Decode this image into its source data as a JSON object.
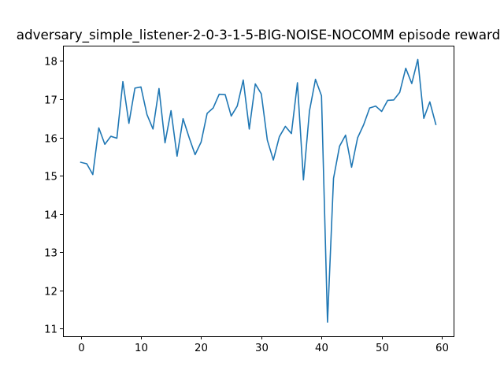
{
  "chart_data": {
    "type": "line",
    "title": "adversary_simple_listener-2-0-3-1-5-BIG-NOISE-NOCOMM episode reward",
    "xlabel": "",
    "ylabel": "",
    "xlim": [
      -2.95,
      61.95
    ],
    "ylim": [
      10.8,
      18.4
    ],
    "xticks": [
      0,
      10,
      20,
      30,
      40,
      50,
      60
    ],
    "yticks": [
      11,
      12,
      13,
      14,
      15,
      16,
      17,
      18
    ],
    "grid": false,
    "line_color": "#1f77b4",
    "series": [
      {
        "x": [
          0,
          1,
          2,
          3,
          4,
          5,
          6,
          7,
          8,
          9,
          10,
          11,
          12,
          13,
          14,
          15,
          16,
          17,
          18,
          19,
          20,
          21,
          22,
          23,
          24,
          25,
          26,
          27,
          28,
          29,
          30,
          31,
          32,
          33,
          34,
          35,
          36,
          37,
          38,
          39,
          40,
          41,
          42,
          43,
          44,
          45,
          46,
          47,
          48,
          49,
          50,
          51,
          52,
          53,
          54,
          55,
          56,
          57,
          58,
          59
        ],
        "values": [
          15.35,
          15.31,
          15.03,
          16.25,
          15.82,
          16.03,
          15.98,
          17.46,
          16.37,
          17.29,
          17.32,
          16.6,
          16.22,
          17.28,
          15.86,
          16.7,
          15.51,
          16.49,
          16.0,
          15.55,
          15.88,
          16.63,
          16.77,
          17.13,
          17.12,
          16.56,
          16.82,
          17.5,
          16.22,
          17.4,
          17.14,
          15.93,
          15.41,
          16.02,
          16.29,
          16.1,
          17.43,
          14.89,
          16.69,
          17.52,
          17.09,
          11.17,
          14.93,
          15.77,
          16.06,
          15.22,
          15.99,
          16.33,
          16.77,
          16.82,
          16.68,
          16.97,
          16.98,
          17.18,
          17.81,
          17.41,
          18.04,
          16.5,
          16.93,
          16.34
        ]
      }
    ]
  }
}
